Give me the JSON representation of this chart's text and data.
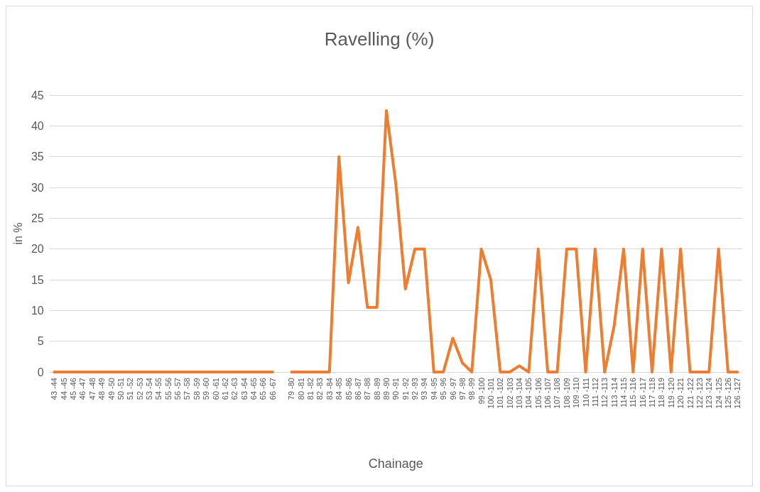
{
  "chart_data": {
    "type": "line",
    "title": "Ravelling (%)",
    "xlabel": "Chainage",
    "ylabel": "in %",
    "categories": [
      "43 -44",
      "44 -45",
      "45 -46",
      "46 -47",
      "47 -48",
      "48 -49",
      "49 -50",
      "50 -51",
      "51 -52",
      "52 -53",
      "53 -54",
      "54 -55",
      "55 -56",
      "56 -57",
      "57 -58",
      "58 -59",
      "59 -60",
      "60 -61",
      "61 -62",
      "62 -63",
      "63 -64",
      "64 -65",
      "65 -66",
      "66 -67",
      null,
      "79 -80",
      "80 -81",
      "81 -82",
      "82 -83",
      "83 -84",
      "84 -85",
      "85 -86",
      "86 -87",
      "87 -88",
      "88 -89",
      "89 -90",
      "90 -91",
      "91 -92",
      "92 -93",
      "93 -94",
      "94 -95",
      "95 -96",
      "96 -97",
      "97 -98",
      "98 -99",
      "99 -100",
      "100 -101",
      "101 -102",
      "102 -103",
      "103 -104",
      "104 -105",
      "105 -106",
      "106 -107",
      "107 -108",
      "108 -109",
      "109 -110",
      "110 -111",
      "111 -112",
      "112 -113",
      "113 -114",
      "114 -115",
      "115 -116",
      "116 -117",
      "117 -118",
      "118 -119",
      "119 -120",
      "120 -121",
      "121 -122",
      "122 -123",
      "123 -124",
      "124 -125",
      "125 -126",
      "126 -127"
    ],
    "series": [
      {
        "color": "#ed7d31",
        "values": [
          0,
          0,
          0,
          0,
          0,
          0,
          0,
          0,
          0,
          0,
          0,
          0,
          0,
          0,
          0,
          0,
          0,
          0,
          0,
          0,
          0,
          0,
          0,
          0,
          null,
          0,
          0,
          0,
          0,
          0,
          35,
          14.5,
          23.5,
          10.5,
          10.5,
          42.5,
          30.5,
          13.5,
          20,
          20,
          0,
          0,
          5.5,
          1.5,
          0,
          20,
          15,
          0,
          0,
          1,
          0,
          20,
          0,
          0,
          20,
          20,
          0,
          20,
          0,
          7.5,
          20,
          0,
          20,
          0,
          20,
          0,
          20,
          0,
          0,
          0,
          20,
          0,
          0
        ]
      }
    ],
    "ylim": [
      0,
      45
    ],
    "yticks": [
      0,
      5,
      10,
      15,
      20,
      25,
      30,
      35,
      40,
      45
    ],
    "grid": "y",
    "marker": "none",
    "line_style": "solid"
  }
}
